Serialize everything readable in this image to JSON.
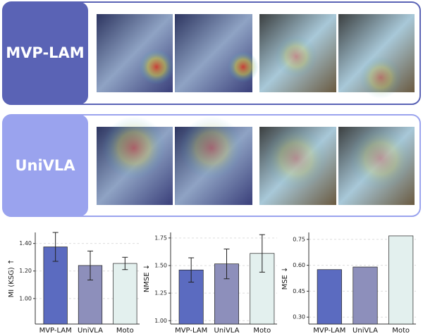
{
  "panels": [
    {
      "label": "MVP-LAM"
    },
    {
      "label": "UniVLA"
    }
  ],
  "chart_data": [
    {
      "type": "bar",
      "y_label": "MI (KSG) ↑",
      "categories": [
        "MVP-LAM",
        "UniVLA",
        "Moto"
      ],
      "values": [
        1.375,
        1.24,
        1.255
      ],
      "errors": [
        0.105,
        0.105,
        0.045
      ],
      "colors": [
        "#5b6bc0",
        "#8d8fbb",
        "#e3f0ee"
      ],
      "ylim": [
        0.815,
        1.48
      ],
      "yticks": [
        {
          "value": 1.0,
          "label": "1.00"
        },
        {
          "value": 1.2,
          "label": "1.20"
        },
        {
          "value": 1.4,
          "label": "1.40"
        }
      ],
      "grid": true
    },
    {
      "type": "bar",
      "y_label": "NMSE ↓",
      "categories": [
        "MVP-LAM",
        "UniVLA",
        "Moto"
      ],
      "values": [
        1.46,
        1.515,
        1.61
      ],
      "errors": [
        0.11,
        0.135,
        0.17
      ],
      "colors": [
        "#5b6bc0",
        "#8d8fbb",
        "#e3f0ee"
      ],
      "ylim": [
        0.97,
        1.8
      ],
      "yticks": [
        {
          "value": 1.0,
          "label": "1.00"
        },
        {
          "value": 1.25,
          "label": "1.25"
        },
        {
          "value": 1.5,
          "label": "1.50"
        },
        {
          "value": 1.75,
          "label": "1.75"
        }
      ],
      "grid": true
    },
    {
      "type": "bar",
      "y_label": "MSE ↓",
      "categories": [
        "MVP-LAM",
        "UniVLA",
        "Moto"
      ],
      "values": [
        0.575,
        0.59,
        0.77
      ],
      "colors": [
        "#5b6bc0",
        "#8d8fbb",
        "#e3f0ee"
      ],
      "ylim": [
        0.26,
        0.79
      ],
      "yticks": [
        {
          "value": 0.3,
          "label": "0.30"
        },
        {
          "value": 0.45,
          "label": "0.45"
        },
        {
          "value": 0.6,
          "label": "0.60"
        },
        {
          "value": 0.75,
          "label": "0.75"
        }
      ],
      "grid": true
    }
  ]
}
